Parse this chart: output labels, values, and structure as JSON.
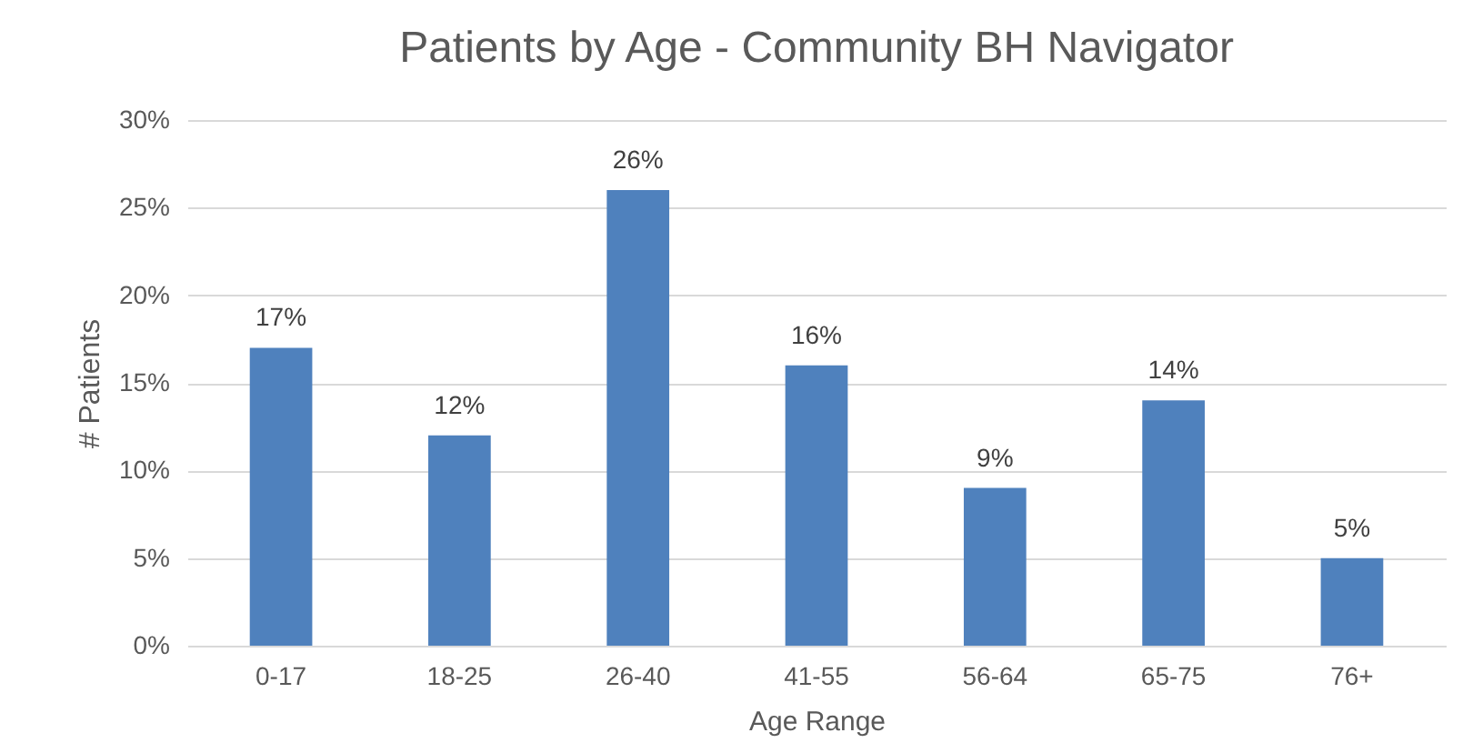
{
  "chart_data": {
    "type": "bar",
    "title": "Patients by Age - Community BH Navigator",
    "xlabel": "Age Range",
    "ylabel": "# Patients",
    "categories": [
      "0-17",
      "18-25",
      "26-40",
      "41-55",
      "56-64",
      "65-75",
      "76+"
    ],
    "values": [
      17,
      12,
      26,
      16,
      9,
      14,
      5
    ],
    "color": "#4f81bd",
    "value_labels": [
      "17%",
      "12%",
      "26%",
      "16%",
      "9%",
      "14%",
      "5%"
    ],
    "ylim": [
      0,
      30
    ],
    "yticks": [
      {
        "value": 0,
        "label": "0%"
      },
      {
        "value": 5,
        "label": "5%"
      },
      {
        "value": 10,
        "label": "10%"
      },
      {
        "value": 15,
        "label": "15%"
      },
      {
        "value": 20,
        "label": "20%"
      },
      {
        "value": 25,
        "label": "25%"
      },
      {
        "value": 30,
        "label": "30%"
      }
    ],
    "grid": "y"
  }
}
